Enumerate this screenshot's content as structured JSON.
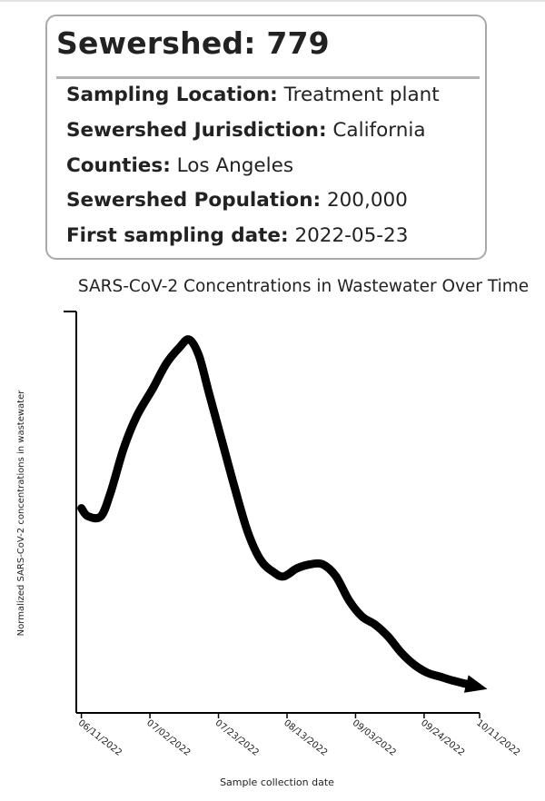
{
  "card": {
    "title": "Sewershed: 779",
    "rows": [
      {
        "label": "Sampling Location:",
        "value": "Treatment plant"
      },
      {
        "label": "Sewershed Jurisdiction:",
        "value": "California"
      },
      {
        "label": "Counties:",
        "value": "Los Angeles"
      },
      {
        "label": "Sewershed Population:",
        "value": "200,000"
      },
      {
        "label": "First sampling date:",
        "value": "2022-05-23"
      }
    ]
  },
  "chart_data": {
    "type": "line",
    "title": "SARS-CoV-2 Concentrations in Wastewater Over Time",
    "xlabel": "Sample collection date",
    "ylabel": "Normalized SARS-CoV-2 concentrations in wastewater",
    "x_ticks": [
      "06/11/2022",
      "07/02/2022",
      "07/23/2022",
      "08/13/2022",
      "09/03/2022",
      "09/24/2022",
      "10/11/2022"
    ],
    "xlim": [
      "2022-06-10",
      "2022-10-11"
    ],
    "ylim": [
      0,
      100
    ],
    "y_tick_labels_shown": false,
    "grid": false,
    "legend": false,
    "end_marker": "arrow",
    "line_color": "#000000",
    "x": [
      "2022-06-11",
      "2022-06-13",
      "2022-06-17",
      "2022-06-20",
      "2022-06-24",
      "2022-06-28",
      "2022-07-03",
      "2022-07-07",
      "2022-07-11",
      "2022-07-14",
      "2022-07-17",
      "2022-07-20",
      "2022-07-24",
      "2022-07-28",
      "2022-08-01",
      "2022-08-05",
      "2022-08-09",
      "2022-08-12",
      "2022-08-16",
      "2022-08-20",
      "2022-08-24",
      "2022-08-28",
      "2022-09-01",
      "2022-09-05",
      "2022-09-09",
      "2022-09-13",
      "2022-09-17",
      "2022-09-21",
      "2022-09-25",
      "2022-09-29",
      "2022-10-03",
      "2022-10-08"
    ],
    "y": [
      51,
      49,
      49,
      55,
      66,
      74,
      81,
      87,
      91,
      93,
      89,
      80,
      68,
      56,
      45,
      38,
      35,
      34,
      36,
      37,
      37,
      34,
      28,
      24,
      22,
      19,
      15,
      12,
      10,
      9,
      8,
      7
    ]
  }
}
